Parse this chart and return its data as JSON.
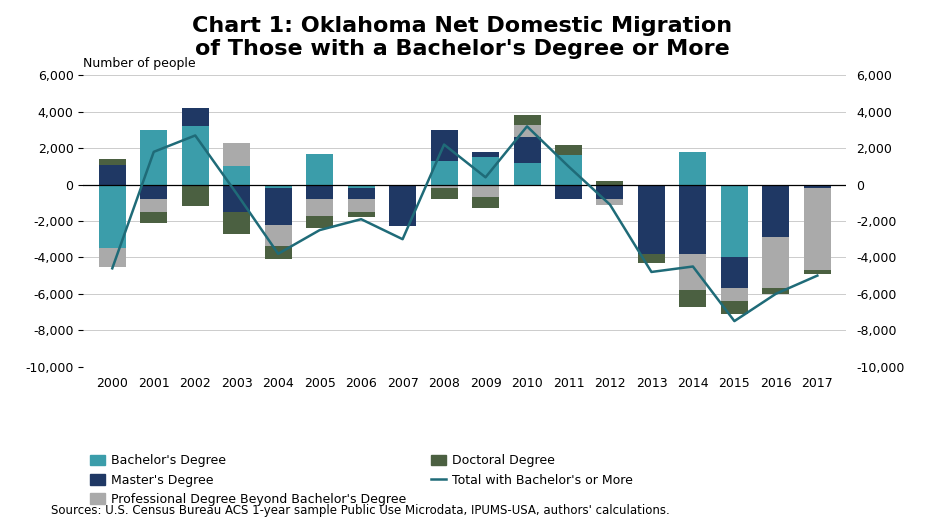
{
  "years": [
    2000,
    2001,
    2002,
    2003,
    2004,
    2005,
    2006,
    2007,
    2008,
    2009,
    2010,
    2011,
    2012,
    2013,
    2014,
    2015,
    2016,
    2017
  ],
  "bachelors": [
    -3500,
    3000,
    3200,
    1000,
    -200,
    1700,
    -200,
    0,
    1300,
    1500,
    1200,
    1600,
    -100,
    -100,
    1800,
    -4000,
    -100,
    -100
  ],
  "masters": [
    1100,
    -800,
    1000,
    -1500,
    -2000,
    -800,
    -600,
    -2300,
    1700,
    300,
    1400,
    -800,
    -700,
    -3700,
    -3800,
    -1700,
    -2800,
    -100
  ],
  "professional": [
    -1000,
    -700,
    0,
    1300,
    -1200,
    -900,
    -700,
    0,
    -200,
    -700,
    700,
    0,
    -300,
    0,
    -2000,
    -700,
    -2800,
    -4500
  ],
  "doctoral": [
    300,
    -600,
    -1200,
    -1200,
    -700,
    -700,
    -300,
    0,
    -600,
    -600,
    500,
    600,
    200,
    -500,
    -900,
    -700,
    -300,
    -200
  ],
  "total": [
    -4600,
    1800,
    2700,
    -500,
    -3800,
    -2500,
    -1900,
    -3000,
    2200,
    400,
    3200,
    1000,
    -1100,
    -4800,
    -4500,
    -7500,
    -6000,
    -5000
  ],
  "bachelor_color": "#3B9DAA",
  "masters_color": "#1F3864",
  "professional_color": "#AAAAAA",
  "doctoral_color": "#4B6041",
  "line_color": "#1F6B78",
  "title": "Chart 1: Oklahoma Net Domestic Migration\nof Those with a Bachelor's Degree or More",
  "ylabel_left": "Number of people",
  "source": "Sources: U.S. Census Bureau ACS 1-year sample Public Use Microdata, IPUMS-USA, authors' calculations.",
  "ylim": [
    -10000,
    6000
  ],
  "yticks": [
    -10000,
    -8000,
    -6000,
    -4000,
    -2000,
    0,
    2000,
    4000,
    6000
  ],
  "title_fontsize": 16,
  "label_fontsize": 9,
  "tick_fontsize": 9,
  "source_fontsize": 8.5
}
